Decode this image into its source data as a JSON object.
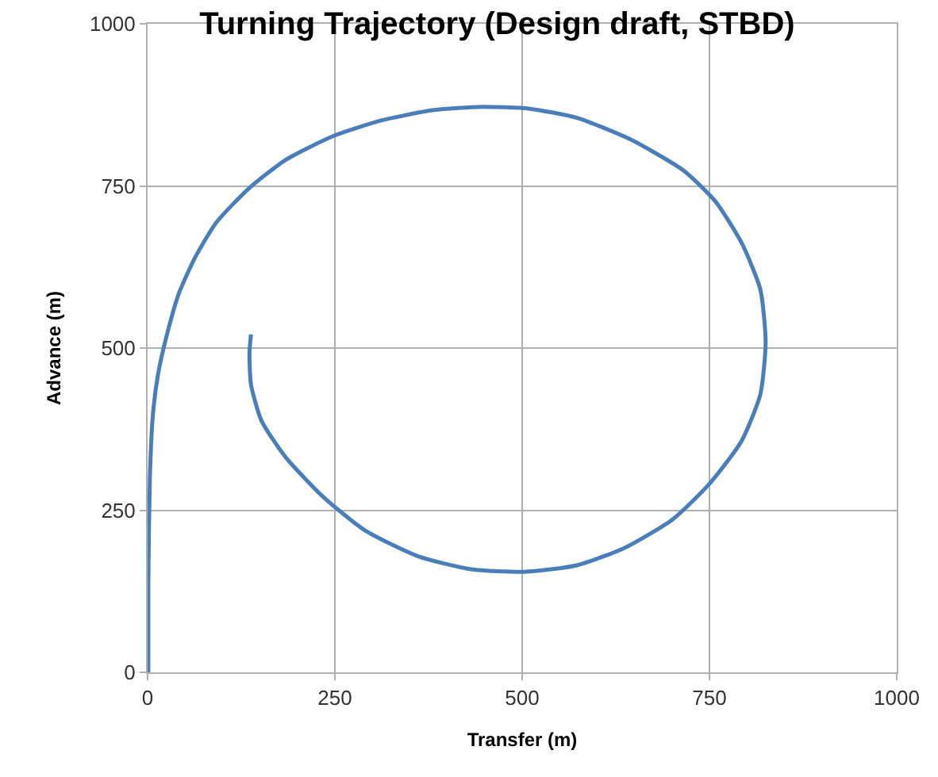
{
  "chart_data": {
    "type": "line",
    "title": "Turning Trajectory (Design draft, STBD)",
    "xlabel": "Transfer (m)",
    "ylabel": "Advance (m)",
    "x": [
      1,
      1,
      3,
      7,
      14,
      25,
      42,
      64,
      92,
      135,
      184,
      248,
      312,
      382,
      446,
      510,
      573,
      644,
      715,
      758,
      793,
      818,
      825,
      818,
      793,
      751,
      701,
      637,
      573,
      503,
      432,
      361,
      290,
      234,
      184,
      152,
      138,
      136,
      138
    ],
    "series": [
      {
        "color": "#4a7ebb",
        "values": [
          0,
          138,
          299,
          396,
          460,
          517,
          585,
          641,
          694,
          746,
          790,
          827,
          851,
          867,
          872,
          869,
          855,
          822,
          774,
          726,
          662,
          590,
          509,
          429,
          357,
          292,
          236,
          192,
          165,
          155,
          159,
          179,
          219,
          271,
          332,
          388,
          444,
          493,
          521
        ]
      }
    ],
    "xlim": [
      0,
      1000
    ],
    "ylim": [
      0,
      1000
    ],
    "xticks": [
      0,
      250,
      500,
      750,
      1000
    ],
    "yticks": [
      0,
      250,
      500,
      750,
      1000
    ],
    "grid": true,
    "marker": "none",
    "line_style": "solid"
  }
}
